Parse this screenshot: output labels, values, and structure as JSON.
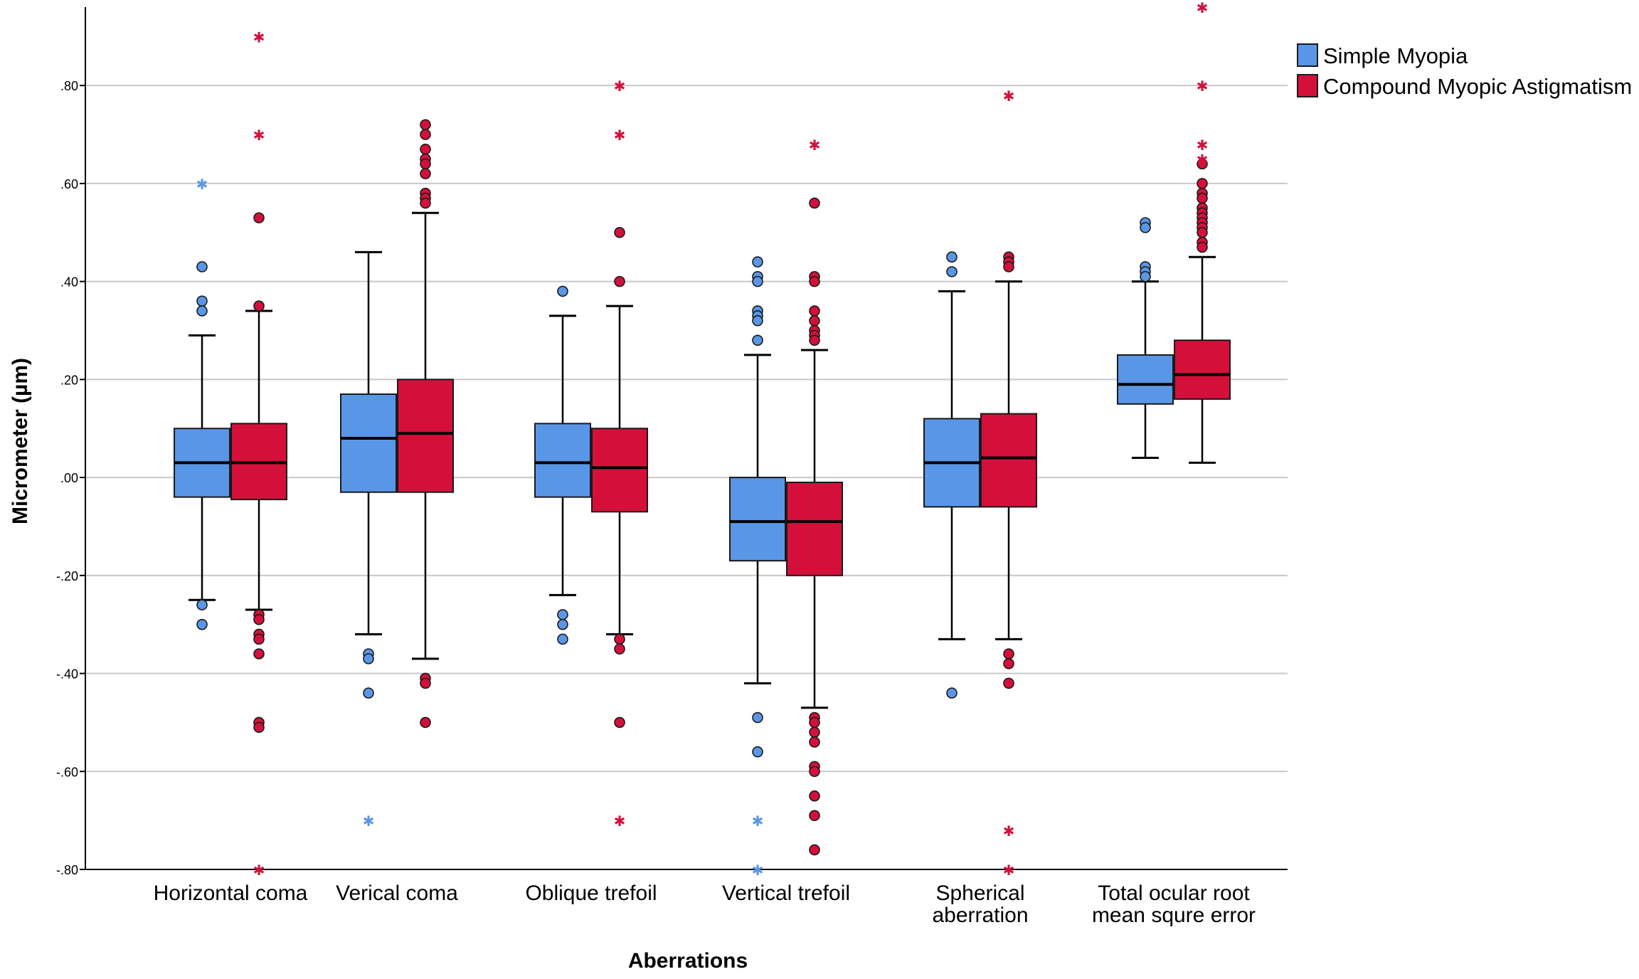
{
  "chart_data": {
    "type": "boxplot",
    "title": "",
    "xlabel": "Aberrations",
    "ylabel": "Micrometer (µm)",
    "ylim": [
      -0.8,
      0.96
    ],
    "yticks": [
      {
        "value": 0.8,
        "label": ".80"
      },
      {
        "value": 0.6,
        "label": ".60"
      },
      {
        "value": 0.4,
        "label": ".40"
      },
      {
        "value": 0.2,
        "label": ".20"
      },
      {
        "value": 0.0,
        "label": ".00"
      },
      {
        "value": -0.2,
        "label": "-.20"
      },
      {
        "value": -0.4,
        "label": "-.40"
      },
      {
        "value": -0.6,
        "label": "-.60"
      },
      {
        "value": -0.8,
        "label": "-.80"
      }
    ],
    "grid": true,
    "legend_position": "top-right",
    "colors": {
      "Simple Myopia": "#5a96e6",
      "Compound Myopic Astigmatism": "#d4103a"
    },
    "series": [
      {
        "name": "Simple Myopia"
      },
      {
        "name": "Compound Myopic Astigmatism"
      }
    ],
    "categories": [
      {
        "label": [
          "Horizontal coma"
        ],
        "boxes": [
          {
            "series": "Simple Myopia",
            "q1": -0.04,
            "median": 0.03,
            "q3": 0.1,
            "whisker_low": -0.25,
            "whisker_high": 0.29,
            "outliers": [
              0.43,
              0.36,
              0.34,
              -0.26,
              -0.3
            ],
            "extremes": [
              0.6
            ]
          },
          {
            "series": "Compound Myopic Astigmatism",
            "q1": -0.045,
            "median": 0.03,
            "q3": 0.11,
            "whisker_low": -0.27,
            "whisker_high": 0.34,
            "outliers": [
              0.53,
              0.35,
              -0.28,
              -0.29,
              -0.32,
              -0.33,
              -0.36,
              -0.5,
              -0.51
            ],
            "extremes": [
              0.9,
              0.7,
              -0.8
            ]
          }
        ]
      },
      {
        "label": [
          "Verical coma"
        ],
        "boxes": [
          {
            "series": "Simple Myopia",
            "q1": -0.03,
            "median": 0.08,
            "q3": 0.17,
            "whisker_low": -0.32,
            "whisker_high": 0.46,
            "outliers": [
              -0.36,
              -0.37,
              -0.44
            ],
            "extremes": [
              -0.7
            ]
          },
          {
            "series": "Compound Myopic Astigmatism",
            "q1": -0.03,
            "median": 0.09,
            "q3": 0.2,
            "whisker_low": -0.37,
            "whisker_high": 0.54,
            "outliers": [
              0.72,
              0.7,
              0.67,
              0.65,
              0.64,
              0.62,
              0.58,
              0.57,
              0.56,
              -0.41,
              -0.42,
              -0.5
            ],
            "extremes": []
          }
        ]
      },
      {
        "label": [
          "Oblique trefoil"
        ],
        "boxes": [
          {
            "series": "Simple Myopia",
            "q1": -0.04,
            "median": 0.03,
            "q3": 0.11,
            "whisker_low": -0.24,
            "whisker_high": 0.33,
            "outliers": [
              0.38,
              -0.28,
              -0.3,
              -0.33
            ],
            "extremes": []
          },
          {
            "series": "Compound Myopic Astigmatism",
            "q1": -0.07,
            "median": 0.02,
            "q3": 0.1,
            "whisker_low": -0.32,
            "whisker_high": 0.35,
            "outliers": [
              0.5,
              0.4,
              -0.33,
              -0.35,
              -0.5
            ],
            "extremes": [
              0.8,
              0.7,
              -0.7
            ]
          }
        ]
      },
      {
        "label": [
          "Vertical trefoil"
        ],
        "boxes": [
          {
            "series": "Simple Myopia",
            "q1": -0.17,
            "median": -0.09,
            "q3": 0.0,
            "whisker_low": -0.42,
            "whisker_high": 0.25,
            "outliers": [
              0.44,
              0.41,
              0.4,
              0.34,
              0.33,
              0.32,
              0.28,
              -0.49,
              -0.56
            ],
            "extremes": [
              -0.7,
              -0.8
            ]
          },
          {
            "series": "Compound Myopic Astigmatism",
            "q1": -0.2,
            "median": -0.09,
            "q3": -0.01,
            "whisker_low": -0.47,
            "whisker_high": 0.26,
            "outliers": [
              0.56,
              0.41,
              0.4,
              0.34,
              0.32,
              0.3,
              0.29,
              0.28,
              -0.49,
              -0.5,
              -0.52,
              -0.54,
              -0.59,
              -0.6,
              -0.65,
              -0.69,
              -0.76
            ],
            "extremes": [
              0.68
            ]
          }
        ]
      },
      {
        "label": [
          "Spherical",
          "aberration"
        ],
        "boxes": [
          {
            "series": "Simple Myopia",
            "q1": -0.06,
            "median": 0.03,
            "q3": 0.12,
            "whisker_low": -0.33,
            "whisker_high": 0.38,
            "outliers": [
              0.45,
              0.42,
              -0.44
            ],
            "extremes": []
          },
          {
            "series": "Compound Myopic Astigmatism",
            "q1": -0.06,
            "median": 0.04,
            "q3": 0.13,
            "whisker_low": -0.33,
            "whisker_high": 0.4,
            "outliers": [
              0.45,
              0.44,
              0.43,
              -0.36,
              -0.38,
              -0.42
            ],
            "extremes": [
              0.78,
              -0.72,
              -0.8
            ]
          }
        ]
      },
      {
        "label": [
          "Total ocular root",
          "mean squre error"
        ],
        "boxes": [
          {
            "series": "Simple Myopia",
            "q1": 0.15,
            "median": 0.19,
            "q3": 0.25,
            "whisker_low": 0.04,
            "whisker_high": 0.4,
            "outliers": [
              0.52,
              0.51,
              0.43,
              0.42,
              0.41
            ],
            "extremes": []
          },
          {
            "series": "Compound Myopic Astigmatism",
            "q1": 0.16,
            "median": 0.21,
            "q3": 0.28,
            "whisker_low": 0.03,
            "whisker_high": 0.45,
            "outliers": [
              0.64,
              0.6,
              0.58,
              0.57,
              0.55,
              0.54,
              0.53,
              0.52,
              0.51,
              0.5,
              0.48,
              0.47
            ],
            "extremes": [
              0.96,
              0.8,
              0.68,
              0.65
            ]
          }
        ]
      }
    ]
  }
}
